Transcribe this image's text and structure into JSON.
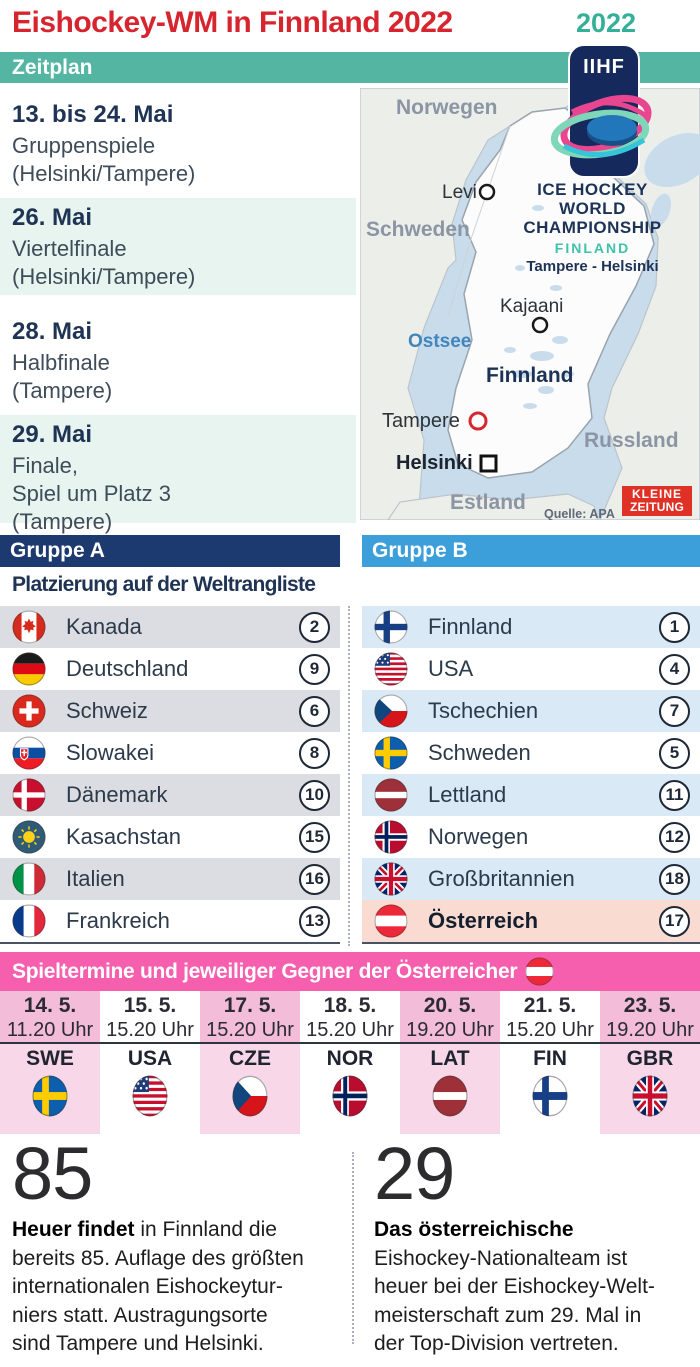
{
  "title": "Eishockey-WM in Finnland 2022",
  "year_badge": "2022",
  "iihf": {
    "text": "IIHF"
  },
  "schedule": {
    "header": "Zeitplan",
    "items": [
      {
        "date": "13. bis 24. Mai",
        "lines": [
          "Gruppenspiele",
          "(Helsinki/Tampere)"
        ]
      },
      {
        "date": "26. Mai",
        "lines": [
          "Viertelfinale",
          "(Helsinki/Tampere)"
        ]
      },
      {
        "date": "28. Mai",
        "lines": [
          "Halbfinale",
          "(Tampere)"
        ]
      },
      {
        "date": "29. Mai",
        "lines": [
          "Finale,",
          "Spiel um Platz 3",
          "(Tampere)"
        ]
      }
    ]
  },
  "map": {
    "countries": {
      "norway": "Norwegen",
      "sweden": "Schweden",
      "russia": "Russland",
      "estonia": "Estland"
    },
    "finland_label": "Finnland",
    "sea": "Ostsee",
    "cities": {
      "levi": "Levi",
      "kajaani": "Kajaani",
      "tampere": "Tampere",
      "helsinki": "Helsinki"
    },
    "event": {
      "line1": "ICE HOCKEY",
      "line2": "WORLD",
      "line3": "CHAMPIONSHIP",
      "country": "FINLAND",
      "venues": "Tampere - Helsinki"
    },
    "source": "Quelle: APA",
    "brand": {
      "line1": "KLEINE",
      "line2": "ZEITUNG"
    }
  },
  "groups": {
    "a": {
      "header": "Gruppe A",
      "subtitle": "Platzierung auf der Weltrangliste",
      "teams": [
        {
          "name": "Kanada",
          "rank": "2",
          "flag": "can"
        },
        {
          "name": "Deutschland",
          "rank": "9",
          "flag": "ger"
        },
        {
          "name": "Schweiz",
          "rank": "6",
          "flag": "sui"
        },
        {
          "name": "Slowakei",
          "rank": "8",
          "flag": "svk"
        },
        {
          "name": "Dänemark",
          "rank": "10",
          "flag": "den"
        },
        {
          "name": "Kasachstan",
          "rank": "15",
          "flag": "kaz"
        },
        {
          "name": "Italien",
          "rank": "16",
          "flag": "ita"
        },
        {
          "name": "Frankreich",
          "rank": "13",
          "flag": "fra"
        }
      ]
    },
    "b": {
      "header": "Gruppe B",
      "teams": [
        {
          "name": "Finnland",
          "rank": "1",
          "flag": "fin"
        },
        {
          "name": "USA",
          "rank": "4",
          "flag": "usa"
        },
        {
          "name": "Tschechien",
          "rank": "7",
          "flag": "cze"
        },
        {
          "name": "Schweden",
          "rank": "5",
          "flag": "swe"
        },
        {
          "name": "Lettland",
          "rank": "11",
          "flag": "lat"
        },
        {
          "name": "Norwegen",
          "rank": "12",
          "flag": "nor"
        },
        {
          "name": "Großbritannien",
          "rank": "18",
          "flag": "gbr"
        },
        {
          "name": "Österreich",
          "rank": "17",
          "flag": "aut"
        }
      ]
    }
  },
  "matches": {
    "header": "Spieltermine und jeweiliger Gegner der Österreicher",
    "header_flag": "aut",
    "games": [
      {
        "date": "14. 5.",
        "time": "11.20 Uhr",
        "code": "SWE",
        "flag": "swe"
      },
      {
        "date": "15. 5.",
        "time": "15.20 Uhr",
        "code": "USA",
        "flag": "usa"
      },
      {
        "date": "17. 5.",
        "time": "15.20 Uhr",
        "code": "CZE",
        "flag": "cze"
      },
      {
        "date": "18. 5.",
        "time": "15.20 Uhr",
        "code": "NOR",
        "flag": "nor"
      },
      {
        "date": "20. 5.",
        "time": "19.20 Uhr",
        "code": "LAT",
        "flag": "lat"
      },
      {
        "date": "21. 5.",
        "time": "15.20 Uhr",
        "code": "FIN",
        "flag": "fin"
      },
      {
        "date": "23. 5.",
        "time": "19.20 Uhr",
        "code": "GBR",
        "flag": "gbr"
      }
    ]
  },
  "facts": [
    {
      "number": "85",
      "lead": "Heuer findet",
      "first_rest": " in Finnland die",
      "lines": [
        "bereits 85. Auflage des größten",
        "internationalen Eishockeytur-",
        "niers statt. Austragungsorte",
        "sind Tampere und Helsinki."
      ]
    },
    {
      "number": "29",
      "lead": "Das österreichische",
      "first_rest": "",
      "lines": [
        "Eishockey-Nationalteam ist",
        "heuer bei der Eishockey-Welt-",
        "meisterschaft zum 29. Mal in",
        "der Top-Division vertreten."
      ]
    }
  ],
  "colors": {
    "title_red": "#d6252e",
    "teal_bar": "#54b6a2",
    "teal_year": "#35b098",
    "mint_row": "#e7f4ef",
    "group_a_navy": "#1c3a70",
    "group_b_blue": "#3d9fd9",
    "row_gray": "#dbdde2",
    "row_lightblue": "#d9e9f6",
    "austria_row": "#fadbd2",
    "pink_header": "#f65fae",
    "pink_col": "#f3bcd8",
    "pink_col_light": "#f8d7e8",
    "map_water": "#c9dcec",
    "map_land": "#ecEEea",
    "brand_red": "#e03127",
    "iihf_navy": "#16295c"
  }
}
